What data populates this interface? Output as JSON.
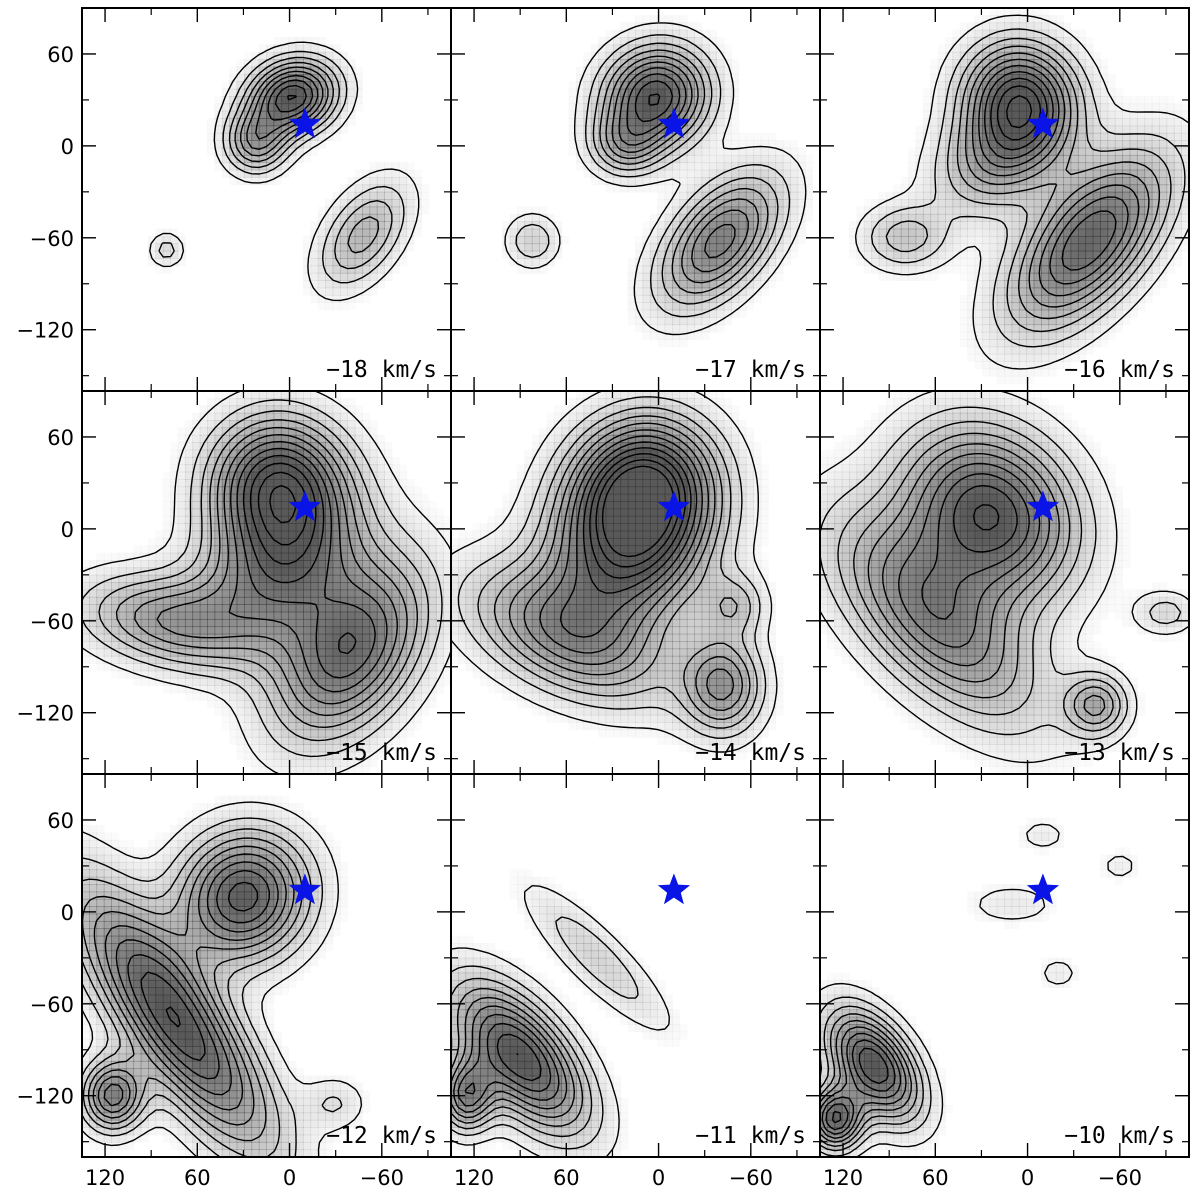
{
  "chart_data": {
    "type": "channel_map",
    "xlim": [
      135,
      -105
    ],
    "ylim": [
      -160,
      90
    ],
    "x_ticks": [
      120,
      60,
      0,
      -60
    ],
    "y_ticks": [
      60,
      0,
      -60,
      -120
    ],
    "x_tick_labels": [
      "120",
      "60",
      "0",
      "−60"
    ],
    "y_tick_labels": [
      "60",
      "0",
      "−60",
      "−120"
    ],
    "grid": false,
    "marker": {
      "shape": "star",
      "color": "#0a14e6",
      "x": -10,
      "y": 14
    },
    "contour_color": "#000000",
    "fill_color": "#3c3c3c",
    "panels": [
      {
        "label": "−18 km/s",
        "blobs": [
          {
            "x": -2,
            "y": 32,
            "sx": 20,
            "sy": 16,
            "rot": -20,
            "amp": 1.0
          },
          {
            "x": 22,
            "y": 2,
            "sx": 14,
            "sy": 14,
            "rot": 0,
            "amp": 0.55
          },
          {
            "x": -48,
            "y": -58,
            "sx": 28,
            "sy": 16,
            "rot": -55,
            "amp": 0.45
          },
          {
            "x": 80,
            "y": -68,
            "sx": 8,
            "sy": 8,
            "rot": 0,
            "amp": 0.25
          }
        ]
      },
      {
        "label": "−17 km/s",
        "blobs": [
          {
            "x": 2,
            "y": 32,
            "sx": 24,
            "sy": 22,
            "rot": -30,
            "amp": 1.0
          },
          {
            "x": 22,
            "y": 0,
            "sx": 16,
            "sy": 14,
            "rot": 0,
            "amp": 0.4
          },
          {
            "x": -40,
            "y": -62,
            "sx": 36,
            "sy": 20,
            "rot": -50,
            "amp": 0.75
          },
          {
            "x": 82,
            "y": -62,
            "sx": 12,
            "sy": 12,
            "rot": 0,
            "amp": 0.3
          }
        ]
      },
      {
        "label": "−16 km/s",
        "blobs": [
          {
            "x": 5,
            "y": 30,
            "sx": 25,
            "sy": 26,
            "rot": -30,
            "amp": 1.0
          },
          {
            "x": 20,
            "y": -10,
            "sx": 30,
            "sy": 22,
            "rot": -30,
            "amp": 0.5
          },
          {
            "x": -40,
            "y": -62,
            "sx": 48,
            "sy": 24,
            "rot": -50,
            "amp": 0.9
          },
          {
            "x": 80,
            "y": -60,
            "sx": 20,
            "sy": 15,
            "rot": 0,
            "amp": 0.35
          }
        ]
      },
      {
        "label": "−15 km/s",
        "blobs": [
          {
            "x": 8,
            "y": 30,
            "sx": 30,
            "sy": 30,
            "rot": -30,
            "amp": 1.0
          },
          {
            "x": 5,
            "y": -25,
            "sx": 40,
            "sy": 30,
            "rot": -40,
            "amp": 0.75
          },
          {
            "x": -40,
            "y": -80,
            "sx": 45,
            "sy": 28,
            "rot": -55,
            "amp": 0.85
          },
          {
            "x": 80,
            "y": -60,
            "sx": 40,
            "sy": 20,
            "rot": 10,
            "amp": 0.55
          }
        ]
      },
      {
        "label": "−14 km/s",
        "blobs": [
          {
            "x": 10,
            "y": 30,
            "sx": 32,
            "sy": 30,
            "rot": -30,
            "amp": 1.0
          },
          {
            "x": 20,
            "y": -15,
            "sx": 38,
            "sy": 34,
            "rot": -40,
            "amp": 0.9
          },
          {
            "x": 60,
            "y": -70,
            "sx": 50,
            "sy": 25,
            "rot": 25,
            "amp": 0.6
          },
          {
            "x": -42,
            "y": -102,
            "sx": 18,
            "sy": 22,
            "rot": 0,
            "amp": 0.6
          },
          {
            "x": -50,
            "y": -50,
            "sx": 14,
            "sy": 14,
            "rot": 0,
            "amp": 0.3
          }
        ]
      },
      {
        "label": "−13 km/s",
        "blobs": [
          {
            "x": 25,
            "y": 10,
            "sx": 35,
            "sy": 42,
            "rot": -45,
            "amp": 1.0
          },
          {
            "x": 60,
            "y": -60,
            "sx": 60,
            "sy": 28,
            "rot": 45,
            "amp": 0.7
          },
          {
            "x": -45,
            "y": -115,
            "sx": 14,
            "sy": 14,
            "rot": 0,
            "amp": 0.5
          },
          {
            "x": -90,
            "y": -55,
            "sx": 14,
            "sy": 10,
            "rot": 0,
            "amp": 0.25
          }
        ]
      },
      {
        "label": "−12 km/s",
        "blobs": [
          {
            "x": 30,
            "y": 10,
            "sx": 28,
            "sy": 30,
            "rot": 45,
            "amp": 0.95
          },
          {
            "x": 75,
            "y": -70,
            "sx": 70,
            "sy": 22,
            "rot": 55,
            "amp": 1.0
          },
          {
            "x": 115,
            "y": -120,
            "sx": 14,
            "sy": 16,
            "rot": 0,
            "amp": 0.75
          },
          {
            "x": -30,
            "y": -125,
            "sx": 14,
            "sy": 12,
            "rot": 0,
            "amp": 0.2
          }
        ]
      },
      {
        "label": "−11 km/s",
        "blobs": [
          {
            "x": 90,
            "y": -95,
            "sx": 40,
            "sy": 20,
            "rot": 50,
            "amp": 1.0
          },
          {
            "x": 125,
            "y": -120,
            "sx": 12,
            "sy": 16,
            "rot": 0,
            "amp": 0.7
          },
          {
            "x": 40,
            "y": -30,
            "sx": 45,
            "sy": 12,
            "rot": 45,
            "amp": 0.28
          }
        ]
      },
      {
        "label": "−10 km/s",
        "blobs": [
          {
            "x": 100,
            "y": -100,
            "sx": 28,
            "sy": 16,
            "rot": 55,
            "amp": 1.0
          },
          {
            "x": 125,
            "y": -135,
            "sx": 12,
            "sy": 14,
            "rot": 0,
            "amp": 0.9
          },
          {
            "x": 10,
            "y": 5,
            "sx": 22,
            "sy": 10,
            "rot": 0,
            "amp": 0.16
          },
          {
            "x": -20,
            "y": -40,
            "sx": 10,
            "sy": 8,
            "rot": 0,
            "amp": 0.15
          },
          {
            "x": -10,
            "y": 50,
            "sx": 12,
            "sy": 8,
            "rot": 0,
            "amp": 0.15
          },
          {
            "x": -60,
            "y": 30,
            "sx": 10,
            "sy": 8,
            "rot": 0,
            "amp": 0.14
          }
        ]
      }
    ]
  }
}
